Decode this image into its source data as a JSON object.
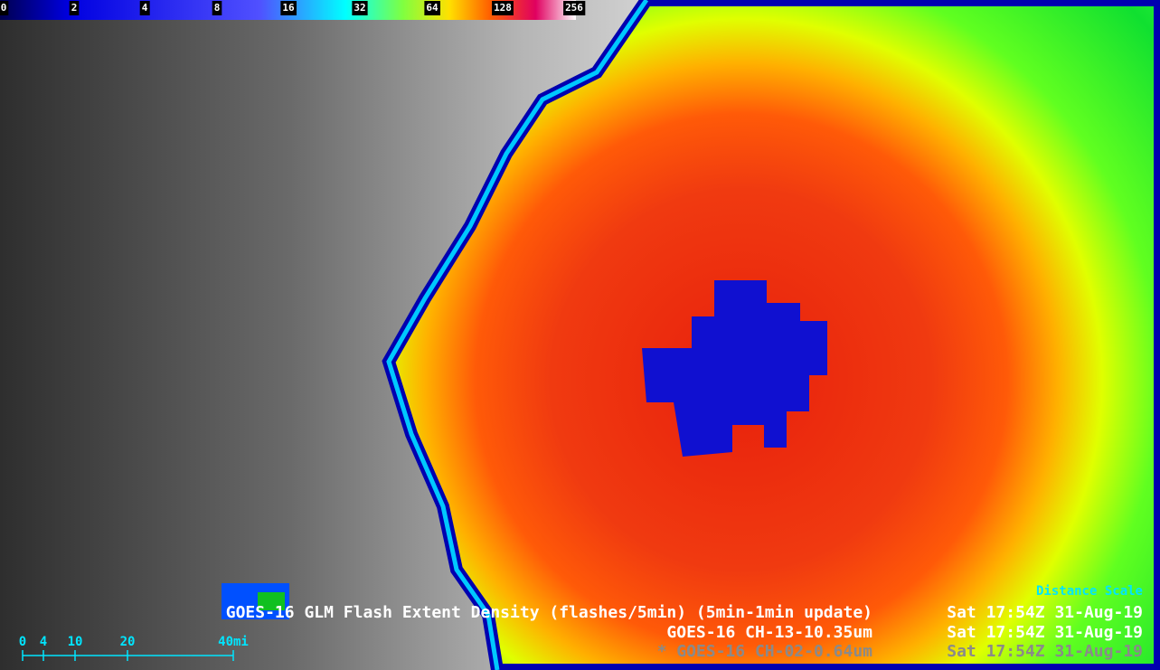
{
  "colorbar": {
    "labels": [
      "0",
      "2",
      "4",
      "8",
      "16",
      "32",
      "64",
      "128",
      "256"
    ]
  },
  "distance_scale": {
    "title": "Distance Scale",
    "labels": [
      "0",
      "4",
      "10",
      "20",
      "40mi"
    ]
  },
  "layers": [
    {
      "name": "GOES-16 GLM Flash Extent Density (flashes/5min) (5min-1min update)",
      "time": "Sat 17:54Z 31-Aug-19"
    },
    {
      "name": "GOES-16 CH-13-10.35um",
      "time": "Sat 17:54Z 31-Aug-19"
    },
    {
      "name": "* GOES-16 CH-02-0.64um",
      "time": "Sat 17:54Z 31-Aug-19"
    }
  ]
}
